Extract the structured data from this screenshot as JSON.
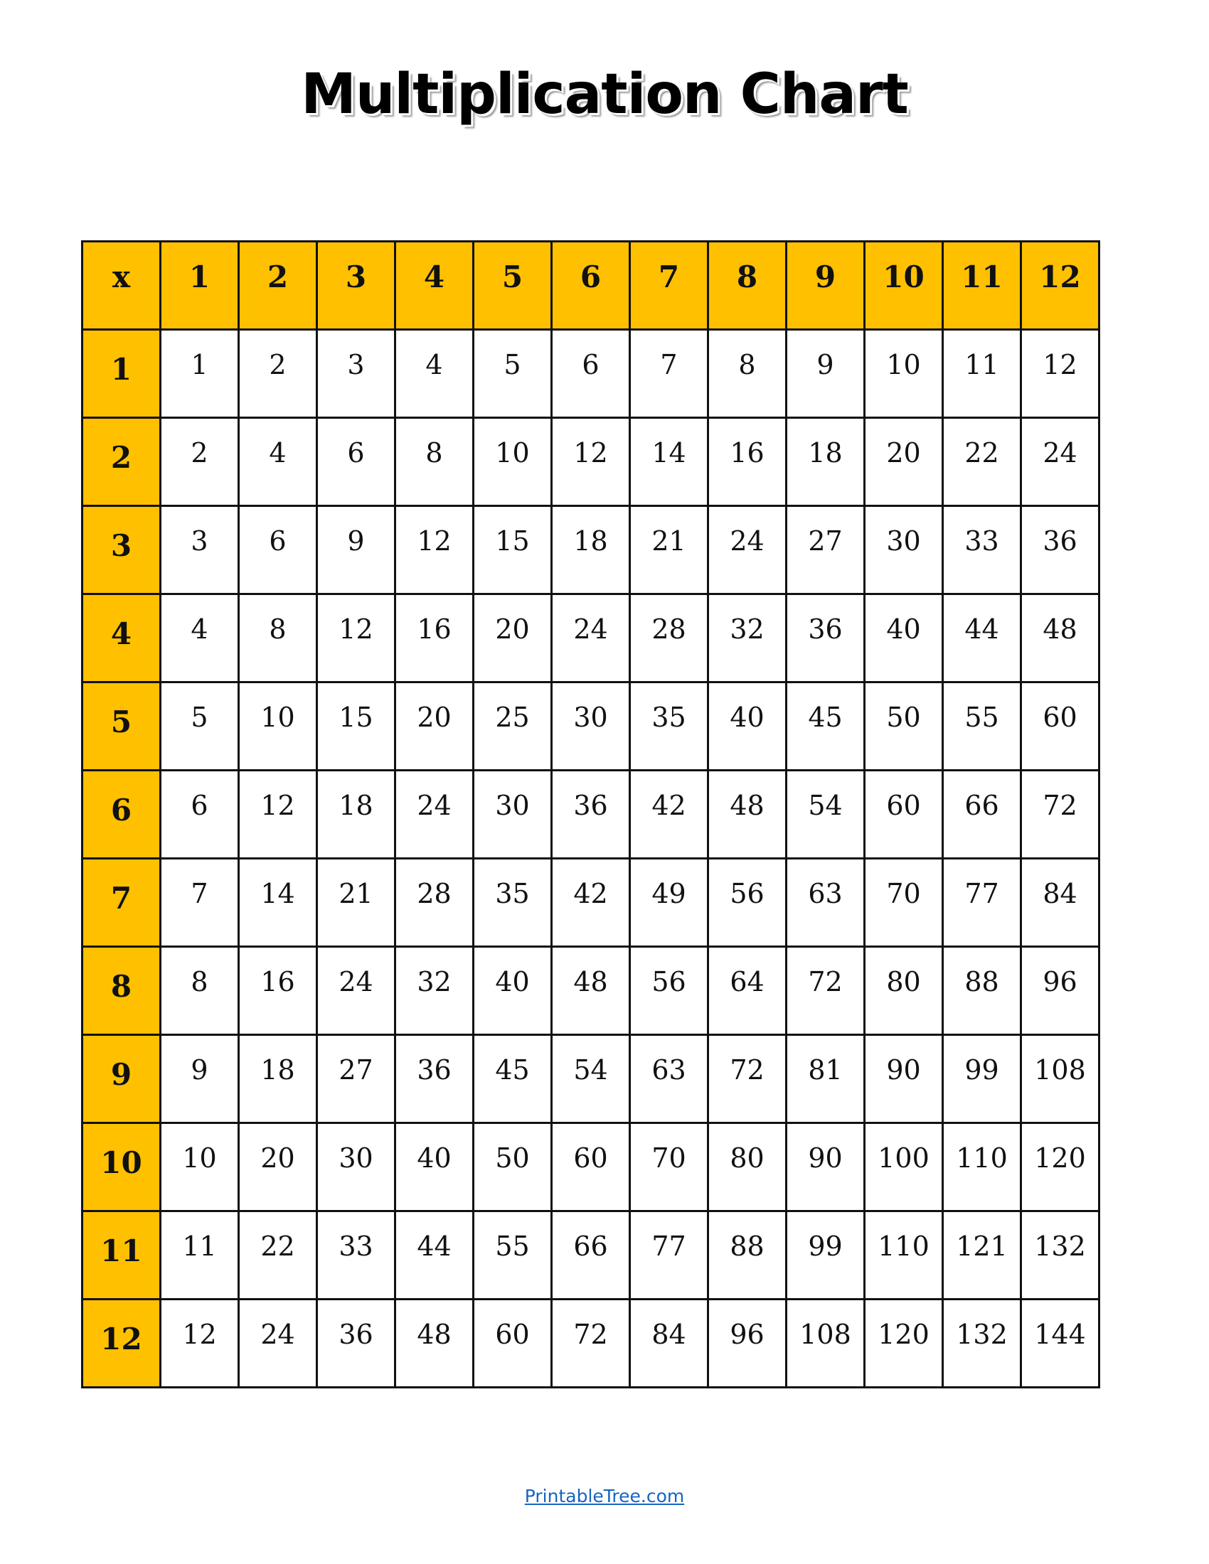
{
  "title": "Multiplication Chart",
  "table": {
    "corner": "x",
    "header_color": "#FFC000",
    "columns": [
      "1",
      "2",
      "3",
      "4",
      "5",
      "6",
      "7",
      "8",
      "9",
      "10",
      "11",
      "12"
    ],
    "rows": [
      {
        "label": "1",
        "values": [
          "1",
          "2",
          "3",
          "4",
          "5",
          "6",
          "7",
          "8",
          "9",
          "10",
          "11",
          "12"
        ]
      },
      {
        "label": "2",
        "values": [
          "2",
          "4",
          "6",
          "8",
          "10",
          "12",
          "14",
          "16",
          "18",
          "20",
          "22",
          "24"
        ]
      },
      {
        "label": "3",
        "values": [
          "3",
          "6",
          "9",
          "12",
          "15",
          "18",
          "21",
          "24",
          "27",
          "30",
          "33",
          "36"
        ]
      },
      {
        "label": "4",
        "values": [
          "4",
          "8",
          "12",
          "16",
          "20",
          "24",
          "28",
          "32",
          "36",
          "40",
          "44",
          "48"
        ]
      },
      {
        "label": "5",
        "values": [
          "5",
          "10",
          "15",
          "20",
          "25",
          "30",
          "35",
          "40",
          "45",
          "50",
          "55",
          "60"
        ]
      },
      {
        "label": "6",
        "values": [
          "6",
          "12",
          "18",
          "24",
          "30",
          "36",
          "42",
          "48",
          "54",
          "60",
          "66",
          "72"
        ]
      },
      {
        "label": "7",
        "values": [
          "7",
          "14",
          "21",
          "28",
          "35",
          "42",
          "49",
          "56",
          "63",
          "70",
          "77",
          "84"
        ]
      },
      {
        "label": "8",
        "values": [
          "8",
          "16",
          "24",
          "32",
          "40",
          "48",
          "56",
          "64",
          "72",
          "80",
          "88",
          "96"
        ]
      },
      {
        "label": "9",
        "values": [
          "9",
          "18",
          "27",
          "36",
          "45",
          "54",
          "63",
          "72",
          "81",
          "90",
          "99",
          "108"
        ]
      },
      {
        "label": "10",
        "values": [
          "10",
          "20",
          "30",
          "40",
          "50",
          "60",
          "70",
          "80",
          "90",
          "100",
          "110",
          "120"
        ]
      },
      {
        "label": "11",
        "values": [
          "11",
          "22",
          "33",
          "44",
          "55",
          "66",
          "77",
          "88",
          "99",
          "110",
          "121",
          "132"
        ]
      },
      {
        "label": "12",
        "values": [
          "12",
          "24",
          "36",
          "48",
          "60",
          "72",
          "84",
          "96",
          "108",
          "120",
          "132",
          "144"
        ]
      }
    ]
  },
  "footer": {
    "link_text": "PrintableTree.com",
    "link_color": "#1565C0"
  }
}
